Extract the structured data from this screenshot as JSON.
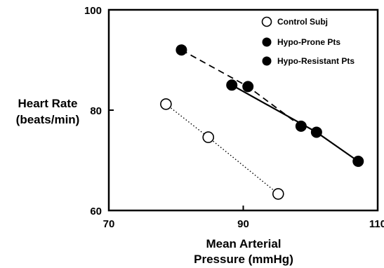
{
  "chart_data": {
    "type": "scatter",
    "xlabel_lines": [
      "Mean Arterial",
      "Pressure (mmHg)"
    ],
    "ylabel_lines": [
      "Heart Rate",
      "(beats/min)"
    ],
    "xlim": [
      70,
      110
    ],
    "ylim": [
      60,
      100
    ],
    "xticks": [
      70,
      90,
      110
    ],
    "yticks": [
      60,
      80,
      100
    ],
    "tick_labels": {
      "x": [
        "70",
        "90",
        "110"
      ],
      "y": [
        "60",
        "80",
        "100"
      ]
    },
    "legend_position": "top-right",
    "series": [
      {
        "name": "Control Subj",
        "marker": "open-circle",
        "line": "dotted",
        "points": [
          [
            78.5,
            81.2
          ],
          [
            84.8,
            74.6
          ],
          [
            95.2,
            63.3
          ]
        ]
      },
      {
        "name": "Hypo-Prone Pts",
        "marker": "filled-circle",
        "line": "dashed",
        "points": [
          [
            80.8,
            92.0
          ],
          [
            90.7,
            84.7
          ],
          [
            98.6,
            76.8
          ]
        ]
      },
      {
        "name": "Hypo-Resistant Pts",
        "marker": "filled-circle",
        "line": "solid",
        "points": [
          [
            88.3,
            85.0
          ],
          [
            100.9,
            75.6
          ],
          [
            107.1,
            69.8
          ]
        ]
      }
    ]
  }
}
